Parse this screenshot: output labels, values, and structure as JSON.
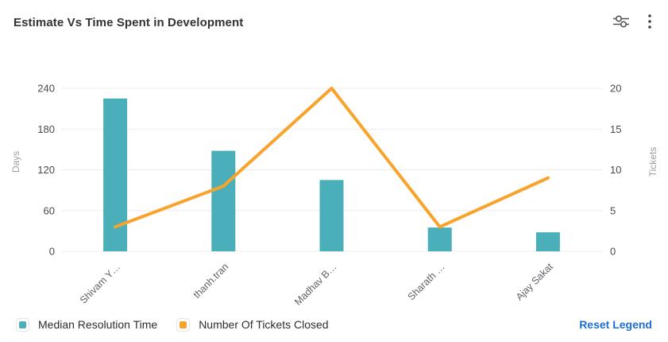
{
  "header": {
    "title": "Estimate Vs Time Spent in Development",
    "actions": [
      {
        "icon": "sliders-icon"
      },
      {
        "icon": "kebab-menu-icon"
      }
    ]
  },
  "chart_data": {
    "type": "bar",
    "subtype": "combo-bar-line",
    "title": "Estimate Vs Time Spent in Development",
    "categories": [
      "Shivam Y…",
      "thanh.tran",
      "Madhav B…",
      "Sharath …",
      "Ajay Sakat"
    ],
    "series": [
      {
        "name": "Median Resolution Time",
        "type": "bar",
        "axis": "left",
        "color": "#4BAFBA",
        "values": [
          225,
          148,
          105,
          35,
          28
        ]
      },
      {
        "name": "Number Of Tickets Closed",
        "type": "line",
        "axis": "right",
        "color": "#F7A32C",
        "values": [
          3,
          8,
          20,
          3,
          9
        ]
      }
    ],
    "left_axis": {
      "label": "Days",
      "ticks": [
        0,
        60,
        120,
        180,
        240
      ],
      "min": 0,
      "max": 240
    },
    "right_axis": {
      "label": "Tickets",
      "ticks": [
        0,
        5,
        10,
        15,
        20
      ],
      "min": 0,
      "max": 20
    },
    "grid": true,
    "legend_position": "bottom"
  },
  "legend": {
    "reset_label": "Reset Legend"
  },
  "colors": {
    "bar": "#4BAFBA",
    "line": "#F7A32C",
    "grid": "#ececec",
    "tick_text": "#4a4a4a",
    "axis_name": "#a0a0a0",
    "x_label": "#5f6368",
    "link": "#1f6fd4"
  }
}
